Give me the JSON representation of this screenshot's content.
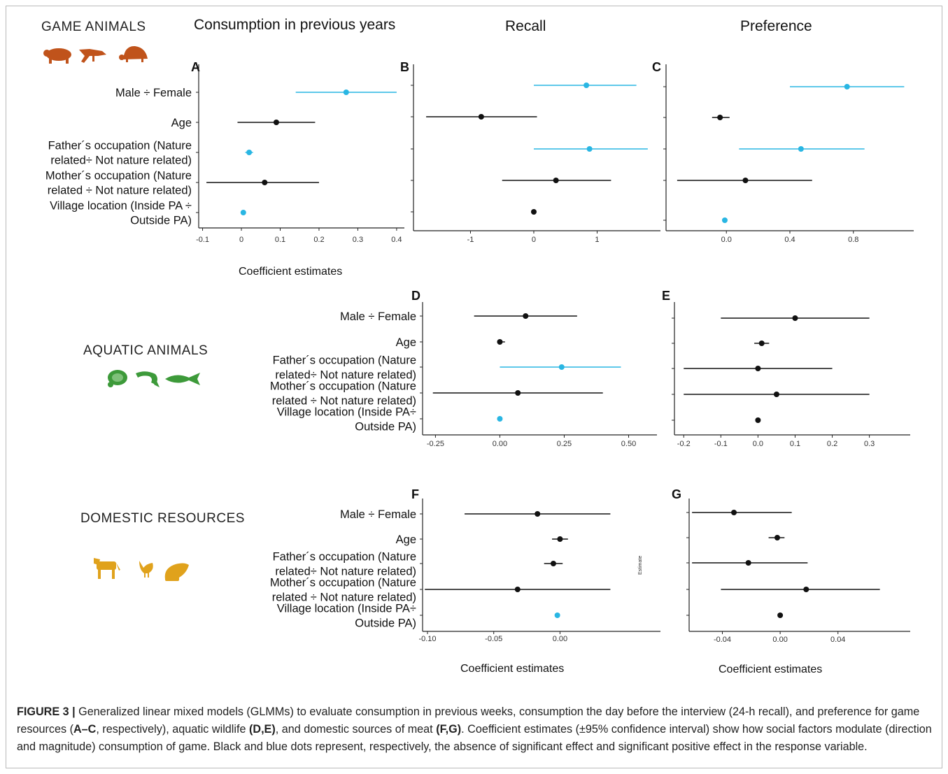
{
  "sections": {
    "game": "GAME ANIMALS",
    "aquatic": "AQUATIC ANIMALS",
    "domestic": "DOMESTIC RESOURCES"
  },
  "columns": {
    "consumption": "Consumption  in previous years",
    "recall": "Recall",
    "preference": "Preference"
  },
  "axis_titles": {
    "game": "Coefficient estimates",
    "domestic_f": "Coefficient estimates",
    "domestic_g": "Coefficient estimates"
  },
  "side_label": "Estimate",
  "icons": {
    "game": [
      "game-mammal-icon",
      "caiman-icon",
      "armadillo-icon"
    ],
    "aquatic": [
      "turtle-icon",
      "shrimp-icon",
      "fish-icon"
    ],
    "domestic": [
      "cattle-icon",
      "chicken-icon",
      "meat-cut-icon"
    ]
  },
  "colors": {
    "game_icons": "#c0531b",
    "aquatic_icons": "#3d9a3a",
    "domestic_icons": "#e0a21c",
    "nonsig": "#111111",
    "sig": "#29b6e3"
  },
  "caption": {
    "prefix": "FIGURE 3 |",
    "t1": " Generalized linear mixed models (GLMMs) to evaluate consumption in previous weeks, consumption the day before the interview (24-h recall), and preference for game resources (",
    "b1": "A–C",
    "t2": ", respectively), aquatic wildlife ",
    "b2": "(D,E)",
    "t3": ", and domestic sources of meat ",
    "b3": "(F,G)",
    "t4": ". Coefficient estimates (±95% confidence interval) show how social factors modulate (direction and magnitude) consumption of game. Black and blue dots represent, respectively, the absence of significant effect and significant positive effect in the response variable."
  },
  "chart_data": [
    {
      "id": "A",
      "type": "scatter",
      "panel_label": "A",
      "xlim": [
        -0.11,
        0.42
      ],
      "ticks": [
        -0.1,
        0,
        0.1,
        0.2,
        0.3,
        0.4
      ],
      "tick_labels": [
        "-0.1",
        "0",
        "0.1",
        "0.2",
        "0.3",
        "0.4"
      ],
      "labels": [
        [
          "Male ÷ Female"
        ],
        [
          "Age"
        ],
        [
          "Father´s occupation (Nature",
          "related÷ Not nature related)"
        ],
        [
          "Mother´s occupation (Nature",
          "related ÷ Not nature related)"
        ],
        [
          "Village location (Inside PA ÷",
          "Outside PA)"
        ]
      ],
      "points": [
        {
          "est": 0.27,
          "lo": 0.14,
          "hi": 0.4,
          "sig": true
        },
        {
          "est": 0.09,
          "lo": -0.01,
          "hi": 0.19,
          "sig": false
        },
        {
          "est": 0.02,
          "lo": 0.01,
          "hi": 0.03,
          "sig": true
        },
        {
          "est": 0.06,
          "lo": -0.09,
          "hi": 0.2,
          "sig": false
        },
        {
          "est": 0.005,
          "lo": 0.0,
          "hi": 0.01,
          "sig": true
        }
      ]
    },
    {
      "id": "B",
      "type": "scatter",
      "panel_label": "B",
      "xlim": [
        -1.9,
        2.0
      ],
      "ticks": [
        -1,
        0,
        1
      ],
      "tick_labels": [
        "-1",
        "0",
        "1"
      ],
      "labels": [],
      "points": [
        {
          "est": 0.83,
          "lo": 0.0,
          "hi": 1.62,
          "sig": true
        },
        {
          "est": -0.83,
          "lo": -1.7,
          "hi": 0.05,
          "sig": false
        },
        {
          "est": 0.88,
          "lo": 0.0,
          "hi": 1.8,
          "sig": true
        },
        {
          "est": 0.35,
          "lo": -0.5,
          "hi": 1.22,
          "sig": false
        },
        {
          "est": 0.0,
          "lo": -0.02,
          "hi": 0.02,
          "sig": false
        }
      ]
    },
    {
      "id": "C",
      "type": "scatter",
      "panel_label": "C",
      "xlim": [
        -0.38,
        1.18
      ],
      "ticks": [
        0.0,
        0.4,
        0.8
      ],
      "tick_labels": [
        "0.0",
        "0.4",
        "0.8"
      ],
      "labels": [],
      "points": [
        {
          "est": 0.76,
          "lo": 0.4,
          "hi": 1.12,
          "sig": true
        },
        {
          "est": -0.04,
          "lo": -0.09,
          "hi": 0.02,
          "sig": false
        },
        {
          "est": 0.47,
          "lo": 0.08,
          "hi": 0.87,
          "sig": true
        },
        {
          "est": 0.12,
          "lo": -0.31,
          "hi": 0.54,
          "sig": false
        },
        {
          "est": -0.01,
          "lo": -0.02,
          "hi": 0.0,
          "sig": true
        }
      ]
    },
    {
      "id": "D",
      "type": "scatter",
      "panel_label": "D",
      "xlim": [
        -0.3,
        0.61
      ],
      "ticks": [
        -0.25,
        0.0,
        0.25,
        0.5
      ],
      "tick_labels": [
        "-0.25",
        "0.00",
        "0.25",
        "0.50"
      ],
      "labels": [
        [
          "Male ÷ Female"
        ],
        [
          "Age"
        ],
        [
          "Father´s occupation (Nature",
          "related÷ Not nature related)"
        ],
        [
          "Mother´s occupation (Nature",
          "related ÷ Not nature related)"
        ],
        [
          "Village location (Inside PA÷",
          "Outside PA)"
        ]
      ],
      "points": [
        {
          "est": 0.1,
          "lo": -0.1,
          "hi": 0.3,
          "sig": false
        },
        {
          "est": 0.0,
          "lo": -0.01,
          "hi": 0.02,
          "sig": false
        },
        {
          "est": 0.24,
          "lo": 0.0,
          "hi": 0.47,
          "sig": true
        },
        {
          "est": 0.07,
          "lo": -0.26,
          "hi": 0.4,
          "sig": false
        },
        {
          "est": 0.0,
          "lo": -0.005,
          "hi": 0.005,
          "sig": true
        }
      ]
    },
    {
      "id": "E",
      "type": "scatter",
      "panel_label": "E",
      "xlim": [
        -0.225,
        0.41
      ],
      "ticks": [
        -0.2,
        -0.1,
        0.0,
        0.1,
        0.2,
        0.3
      ],
      "tick_labels": [
        "-0.2",
        "-0.1",
        "0.0",
        "0.1",
        "0.2",
        "0.3"
      ],
      "labels": [],
      "points": [
        {
          "est": 0.1,
          "lo": -0.1,
          "hi": 0.3,
          "sig": false
        },
        {
          "est": 0.01,
          "lo": -0.01,
          "hi": 0.03,
          "sig": false
        },
        {
          "est": 0.0,
          "lo": -0.2,
          "hi": 0.2,
          "sig": false
        },
        {
          "est": 0.05,
          "lo": -0.2,
          "hi": 0.3,
          "sig": false
        },
        {
          "est": 0.0,
          "lo": -0.002,
          "hi": 0.002,
          "sig": false
        }
      ]
    },
    {
      "id": "F",
      "type": "scatter",
      "panel_label": "F",
      "xlim": [
        -0.1037,
        0.0758
      ],
      "ticks": [
        -0.1,
        -0.05,
        0.0
      ],
      "tick_labels": [
        "-0.10",
        "-0.05",
        "0.00"
      ],
      "labels": [
        [
          "Male ÷ Female"
        ],
        [
          "Age"
        ],
        [
          "Father´s occupation (Nature",
          "related÷ Not nature related)"
        ],
        [
          "Mother´s occupation (Nature",
          "related ÷ Not nature related)"
        ],
        [
          "Village location (Inside PA÷",
          "Outside PA)"
        ]
      ],
      "points": [
        {
          "est": -0.017,
          "lo": -0.072,
          "hi": 0.038,
          "sig": false
        },
        {
          "est": 0.0,
          "lo": -0.006,
          "hi": 0.006,
          "sig": false
        },
        {
          "est": -0.005,
          "lo": -0.012,
          "hi": 0.002,
          "sig": false
        },
        {
          "est": -0.032,
          "lo": -0.102,
          "hi": 0.038,
          "sig": false
        },
        {
          "est": -0.002,
          "lo": -0.003,
          "hi": 0.0,
          "sig": true
        }
      ]
    },
    {
      "id": "G",
      "type": "scatter",
      "panel_label": "G",
      "xlim": [
        -0.063,
        0.09
      ],
      "ticks": [
        -0.04,
        0.0,
        0.04
      ],
      "tick_labels": [
        "-0.04",
        "0.00",
        "0.04"
      ],
      "labels": [],
      "points": [
        {
          "est": -0.032,
          "lo": -0.061,
          "hi": 0.008,
          "sig": false
        },
        {
          "est": -0.002,
          "lo": -0.008,
          "hi": 0.003,
          "sig": false
        },
        {
          "est": -0.022,
          "lo": -0.061,
          "hi": 0.019,
          "sig": false
        },
        {
          "est": 0.018,
          "lo": -0.041,
          "hi": 0.069,
          "sig": false
        },
        {
          "est": 0.0,
          "lo": -0.001,
          "hi": 0.001,
          "sig": false
        }
      ]
    }
  ]
}
